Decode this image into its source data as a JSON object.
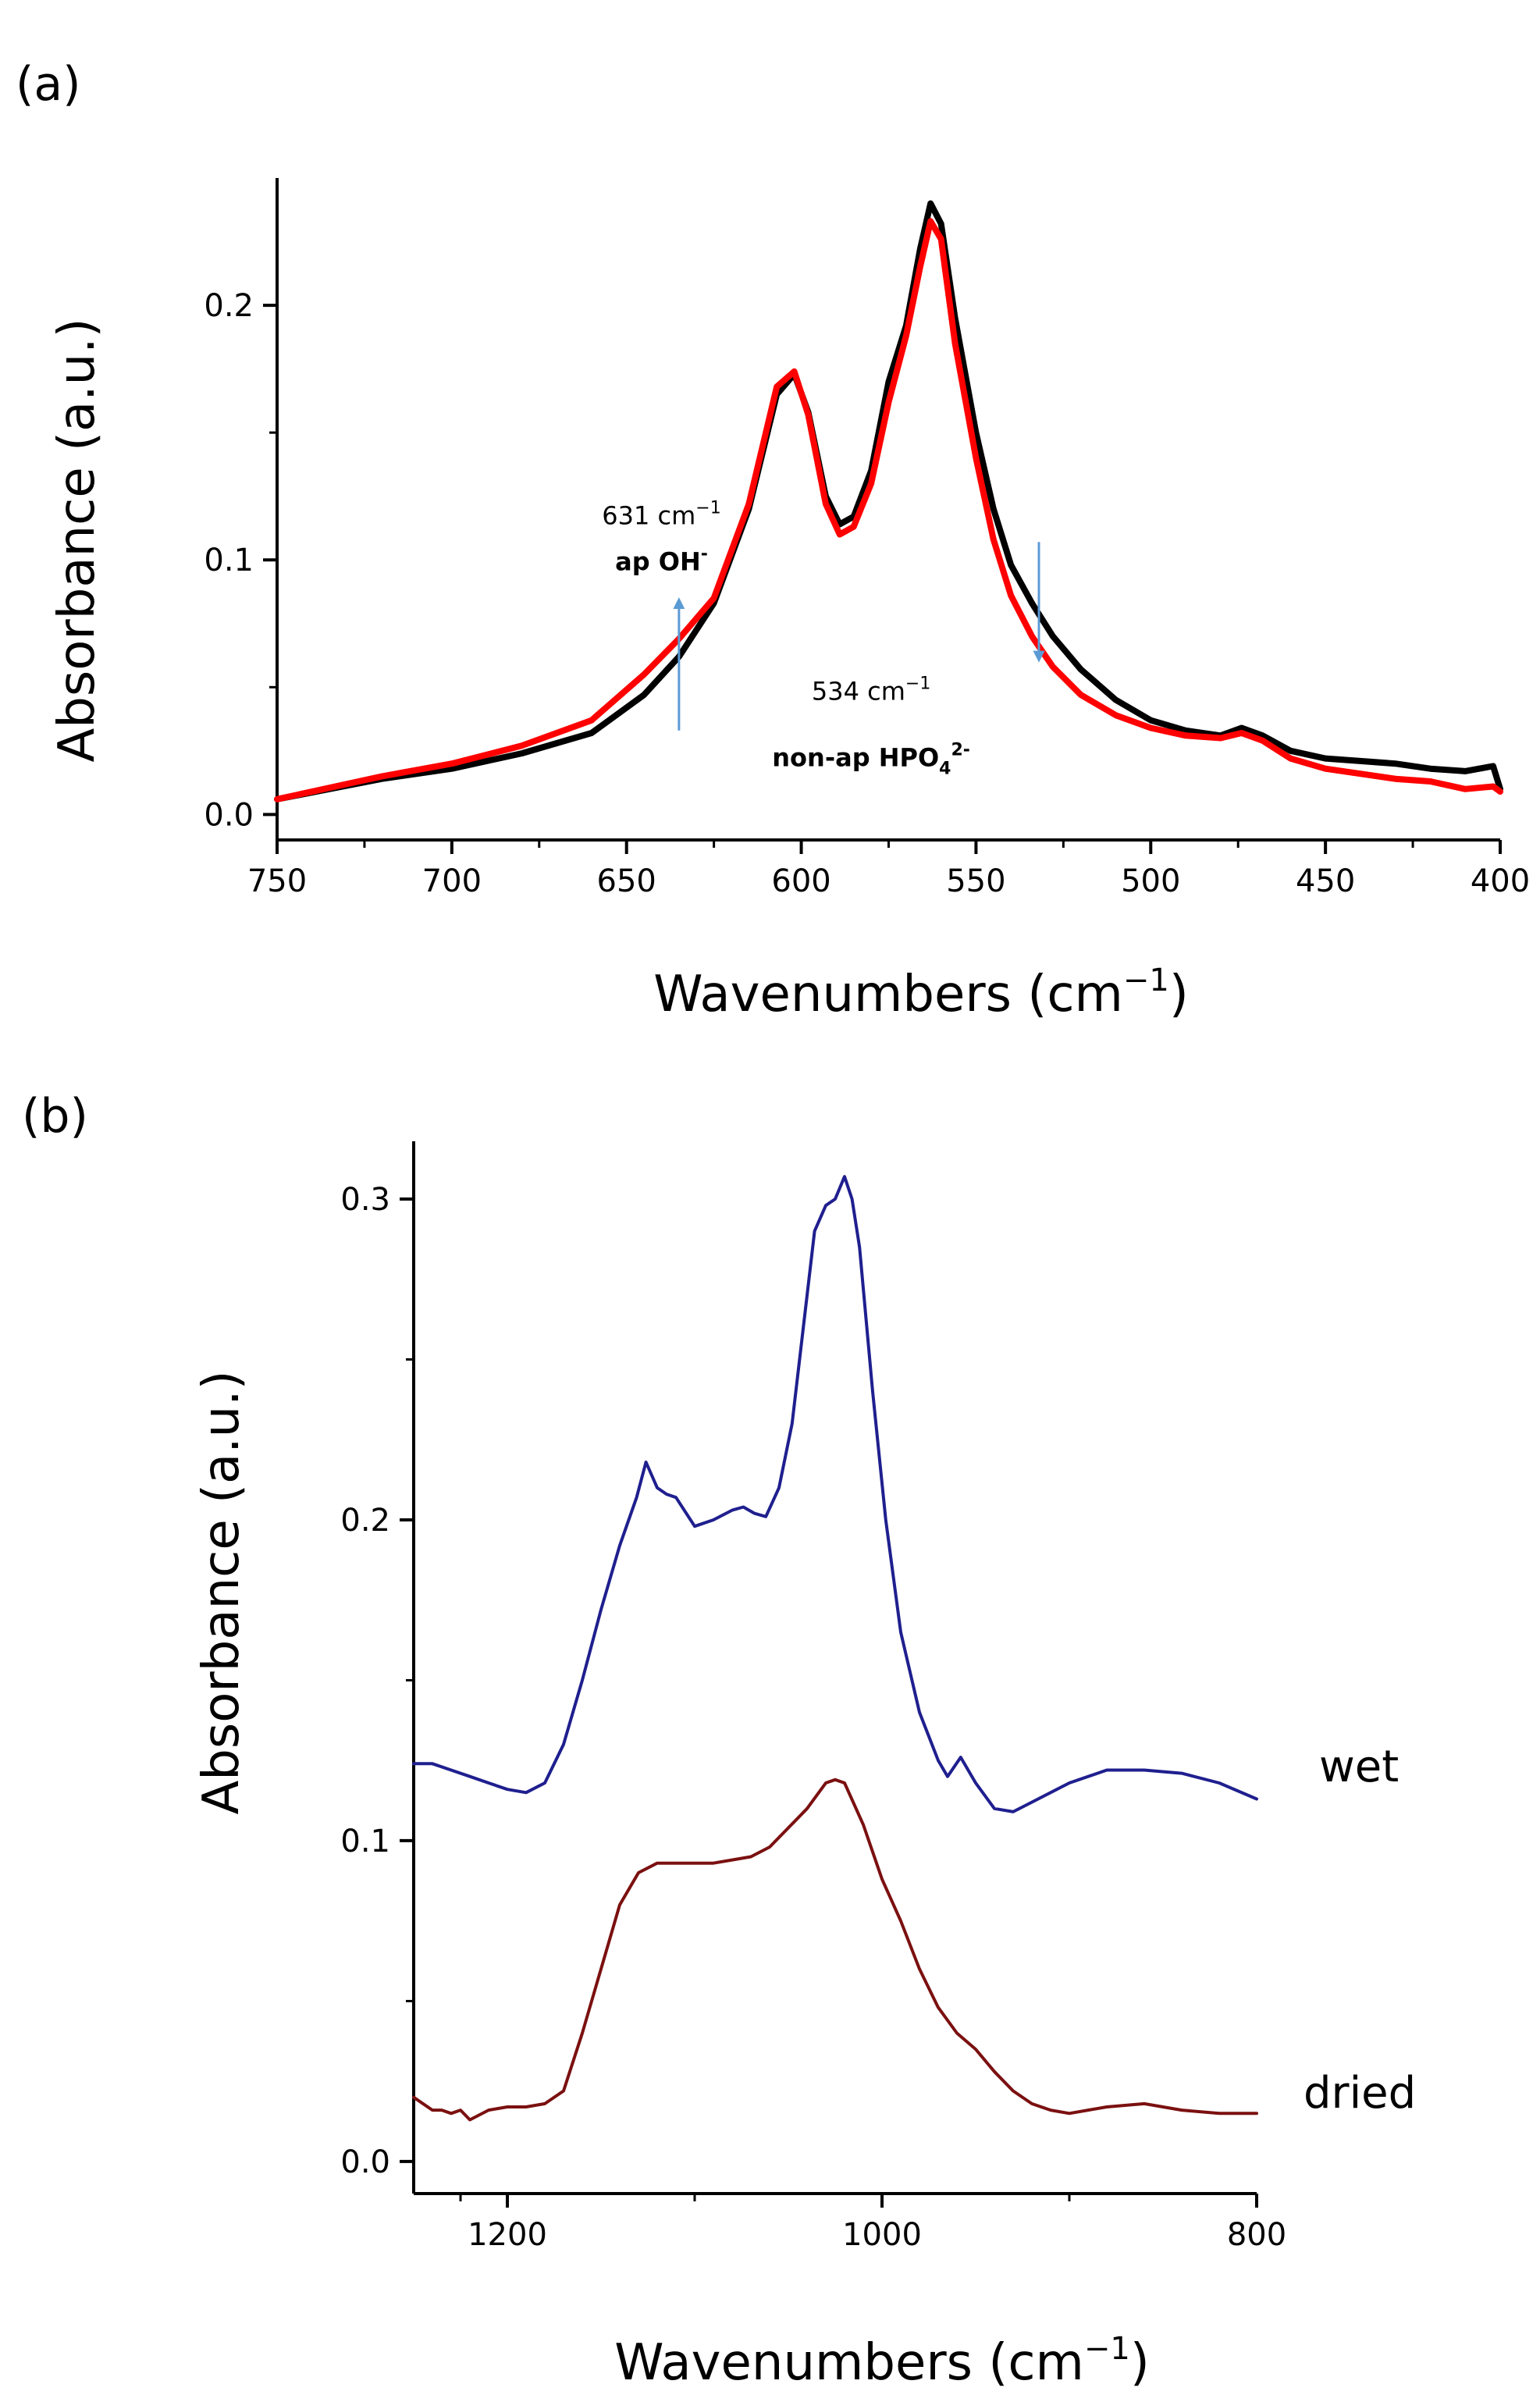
{
  "panels": [
    {
      "label": "(a)",
      "chart_data": {
        "type": "line",
        "xlabel_main": "Wavenumbers (cm",
        "xlabel_sup": "−1",
        "xlabel_close": ")",
        "ylabel": "Absorbance (a.u.)",
        "xlim": [
          750,
          400
        ],
        "ylim": [
          -0.01,
          0.25
        ],
        "x_reversed": true,
        "xticks": [
          750,
          700,
          650,
          600,
          550,
          500,
          450,
          400
        ],
        "yticks": [
          0.0,
          0.1,
          0.2
        ],
        "ytick_labels": [
          "0.0",
          "0.1",
          "0.2"
        ],
        "grid": false,
        "series": [
          {
            "color": "#000000",
            "x": [
              750,
              720,
              700,
              680,
              660,
              645,
              635,
              625,
              615,
              607,
              602,
              598,
              593,
              589,
              585,
              580,
              575,
              570,
              566,
              563,
              560,
              556,
              550,
              545,
              540,
              534,
              528,
              520,
              510,
              500,
              490,
              480,
              474,
              468,
              460,
              450,
              440,
              430,
              420,
              410,
              402,
              400
            ],
            "y": [
              0.006,
              0.014,
              0.018,
              0.024,
              0.032,
              0.047,
              0.062,
              0.083,
              0.12,
              0.165,
              0.173,
              0.158,
              0.125,
              0.114,
              0.117,
              0.135,
              0.17,
              0.192,
              0.222,
              0.24,
              0.232,
              0.195,
              0.15,
              0.12,
              0.098,
              0.083,
              0.07,
              0.057,
              0.045,
              0.037,
              0.033,
              0.031,
              0.034,
              0.031,
              0.025,
              0.022,
              0.021,
              0.02,
              0.018,
              0.017,
              0.019,
              0.01
            ]
          },
          {
            "color": "#ff0000",
            "x": [
              750,
              720,
              700,
              680,
              660,
              645,
              635,
              625,
              615,
              607,
              602,
              598,
              593,
              589,
              585,
              580,
              575,
              570,
              566,
              563,
              560,
              556,
              550,
              545,
              540,
              534,
              528,
              520,
              510,
              500,
              490,
              480,
              474,
              468,
              460,
              450,
              440,
              430,
              420,
              410,
              402,
              400
            ],
            "y": [
              0.006,
              0.015,
              0.02,
              0.027,
              0.037,
              0.055,
              0.069,
              0.085,
              0.122,
              0.168,
              0.174,
              0.157,
              0.122,
              0.11,
              0.113,
              0.13,
              0.162,
              0.188,
              0.215,
              0.233,
              0.226,
              0.185,
              0.14,
              0.108,
              0.086,
              0.07,
              0.058,
              0.047,
              0.039,
              0.034,
              0.031,
              0.03,
              0.032,
              0.029,
              0.022,
              0.018,
              0.016,
              0.014,
              0.013,
              0.01,
              0.011,
              0.009
            ]
          }
        ],
        "annotations": [
          {
            "value": "631 cm",
            "sup": "−1",
            "sub_label": "ap OH",
            "sub_label_sup": "-",
            "arrow_x": 635,
            "arrow_y_from": 0.033,
            "arrow_y_to": 0.083,
            "arrow_color": "#5b9bd5",
            "text_x": 640,
            "text_y": 0.114,
            "sub_y": 0.096
          },
          {
            "value": "534 cm",
            "sup": "−1",
            "sub_label": "non-ap HPO",
            "sub_label_sub": "4",
            "sub_label_sup": "2-",
            "arrow_x": 532,
            "arrow_y_from": 0.107,
            "arrow_y_to": 0.062,
            "arrow_color": "#5b9bd5",
            "text_x": 580,
            "text_y": 0.045,
            "sub_y": 0.019
          }
        ]
      }
    },
    {
      "label": "(b)",
      "chart_data": {
        "type": "line",
        "xlabel_main": "Wavenumbers (cm",
        "xlabel_sup": "−1",
        "xlabel_close": ")",
        "ylabel": "Absorbance (a.u.)",
        "xlim": [
          1250,
          800
        ],
        "ylim": [
          -0.01,
          0.318
        ],
        "x_reversed": true,
        "xticks": [
          1200,
          1000,
          800
        ],
        "yticks": [
          0.0,
          0.1,
          0.2,
          0.3
        ],
        "ytick_labels": [
          "0.0",
          "0.1",
          "0.2",
          "0.3"
        ],
        "grid": false,
        "series": [
          {
            "name": "wet",
            "color": "#1f1f8f",
            "x": [
              1250,
              1240,
              1230,
              1220,
              1210,
              1200,
              1190,
              1180,
              1170,
              1160,
              1150,
              1140,
              1131,
              1126,
              1120,
              1115,
              1110,
              1100,
              1090,
              1080,
              1074,
              1068,
              1062,
              1055,
              1048,
              1042,
              1036,
              1030,
              1025,
              1020,
              1016,
              1012,
              1005,
              998,
              990,
              980,
              970,
              965,
              958,
              950,
              940,
              930,
              920,
              900,
              880,
              860,
              840,
              820,
              800
            ],
            "y": [
              0.124,
              0.124,
              0.122,
              0.12,
              0.118,
              0.116,
              0.115,
              0.118,
              0.13,
              0.15,
              0.172,
              0.192,
              0.207,
              0.218,
              0.21,
              0.208,
              0.207,
              0.198,
              0.2,
              0.203,
              0.204,
              0.202,
              0.201,
              0.21,
              0.23,
              0.26,
              0.29,
              0.298,
              0.3,
              0.307,
              0.3,
              0.285,
              0.24,
              0.2,
              0.165,
              0.14,
              0.125,
              0.12,
              0.126,
              0.118,
              0.11,
              0.109,
              0.112,
              0.118,
              0.122,
              0.122,
              0.121,
              0.118,
              0.113
            ]
          },
          {
            "name": "dried",
            "color": "#7b1010",
            "x": [
              1250,
              1240,
              1235,
              1230,
              1225,
              1220,
              1210,
              1200,
              1190,
              1180,
              1170,
              1160,
              1150,
              1140,
              1130,
              1120,
              1110,
              1100,
              1090,
              1080,
              1070,
              1060,
              1050,
              1040,
              1030,
              1025,
              1020,
              1010,
              1000,
              990,
              980,
              970,
              960,
              950,
              940,
              930,
              920,
              910,
              900,
              880,
              860,
              840,
              820,
              800
            ],
            "y": [
              0.02,
              0.016,
              0.016,
              0.015,
              0.016,
              0.013,
              0.016,
              0.017,
              0.017,
              0.018,
              0.022,
              0.04,
              0.06,
              0.08,
              0.09,
              0.093,
              0.093,
              0.093,
              0.093,
              0.094,
              0.095,
              0.098,
              0.104,
              0.11,
              0.118,
              0.119,
              0.118,
              0.105,
              0.088,
              0.075,
              0.06,
              0.048,
              0.04,
              0.035,
              0.028,
              0.022,
              0.018,
              0.016,
              0.015,
              0.017,
              0.018,
              0.016,
              0.015,
              0.015
            ]
          }
        ]
      }
    }
  ]
}
